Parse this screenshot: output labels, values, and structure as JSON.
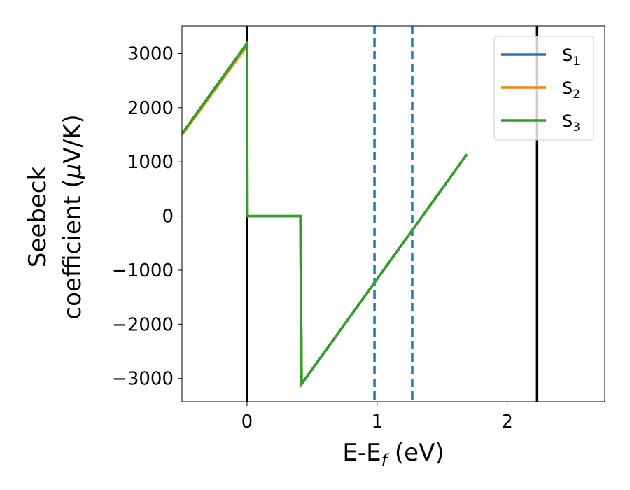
{
  "chart_data": {
    "type": "line",
    "xlabel_main": "E-E",
    "xlabel_sub": "f",
    "xlabel_tail": " (eV)",
    "ylabel_line1": "Seebeck",
    "ylabel_line2_pre": "coefficient  (",
    "ylabel_mu": "μ",
    "ylabel_line2_post": "V/K)",
    "xlim": [
      -0.5,
      2.75
    ],
    "ylim": [
      -3430,
      3510
    ],
    "x_ticks": [
      0,
      1,
      2
    ],
    "x_tick_labels": [
      "0",
      "1",
      "2"
    ],
    "y_ticks": [
      3000,
      2000,
      1000,
      0,
      -1000,
      -2000,
      -3000
    ],
    "y_tick_labels": [
      "3000",
      "2000",
      "1000",
      "0",
      "−1000",
      "−2000",
      "−3000"
    ],
    "grid": false,
    "legend_position": "upper right",
    "series": [
      {
        "name_main": "S",
        "name_sub": "1",
        "color": "#1f77b4",
        "x": [
          -0.5,
          0.0,
          0.003,
          0.41,
          0.42,
          1.69
        ],
        "y": [
          1510,
          3180,
          0,
          0,
          -3100,
          1140
        ]
      },
      {
        "name_main": "S",
        "name_sub": "2",
        "color": "#ff7f0e",
        "x": [
          -0.5,
          0.0,
          0.003,
          0.41,
          0.42,
          1.69
        ],
        "y": [
          1500,
          3140,
          0,
          0,
          -3100,
          1140
        ]
      },
      {
        "name_main": "S",
        "name_sub": "3",
        "color": "#2ca02c",
        "x": [
          -0.5,
          0.0,
          0.003,
          0.41,
          0.42,
          1.69
        ],
        "y": [
          1520,
          3190,
          0,
          0,
          -3100,
          1140
        ]
      }
    ],
    "vlines_solid": {
      "color": "#000000",
      "x": [
        0.0,
        2.23
      ]
    },
    "vlines_dashed": {
      "color": "#1f77b4",
      "x": [
        0.98,
        1.27
      ]
    }
  }
}
